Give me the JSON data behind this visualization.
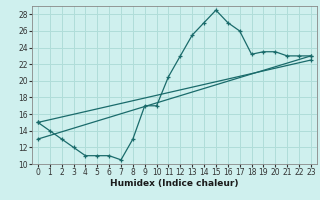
{
  "xlabel": "Humidex (Indice chaleur)",
  "bg_color": "#cff0ee",
  "grid_color": "#b0ddd9",
  "line_color": "#1a6b6b",
  "series1_x": [
    0,
    1,
    2,
    3,
    4,
    5,
    6,
    7,
    8,
    9,
    10,
    11,
    12,
    13,
    14,
    15,
    16,
    17,
    18,
    19,
    20,
    21,
    22,
    23
  ],
  "series1_y": [
    15,
    14,
    13,
    12,
    11,
    11,
    11,
    10.5,
    13,
    17,
    17,
    20.5,
    23,
    25.5,
    27,
    28.5,
    27,
    26,
    23.2,
    23.5,
    23.5,
    23,
    23,
    23
  ],
  "series2_x": [
    0,
    23
  ],
  "series2_y": [
    13,
    23
  ],
  "series3_x": [
    0,
    23
  ],
  "series3_y": [
    15,
    22.5
  ],
  "xlim": [
    -0.5,
    23.5
  ],
  "ylim": [
    10,
    29
  ],
  "yticks": [
    10,
    12,
    14,
    16,
    18,
    20,
    22,
    24,
    26,
    28
  ],
  "xticks": [
    0,
    1,
    2,
    3,
    4,
    5,
    6,
    7,
    8,
    9,
    10,
    11,
    12,
    13,
    14,
    15,
    16,
    17,
    18,
    19,
    20,
    21,
    22,
    23
  ],
  "tick_fontsize": 5.5,
  "xlabel_fontsize": 6.5
}
